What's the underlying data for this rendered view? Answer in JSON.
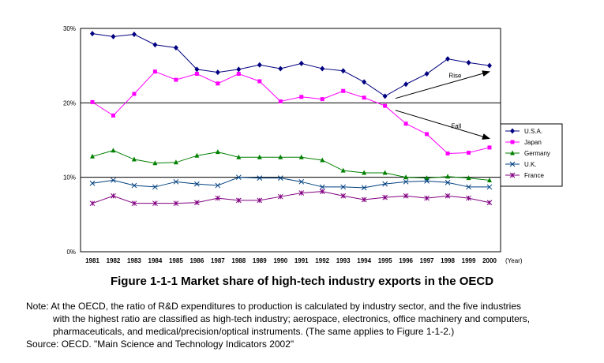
{
  "chart_data": {
    "type": "line",
    "x": [
      1981,
      1982,
      1983,
      1984,
      1985,
      1986,
      1987,
      1988,
      1989,
      1990,
      1991,
      1992,
      1993,
      1994,
      1995,
      1996,
      1997,
      1998,
      1999,
      2000
    ],
    "x_tick_labels": [
      "1981",
      "1982",
      "1983",
      "1984",
      "1985",
      "1986",
      "1987",
      "1988",
      "1989",
      "1990",
      "1991",
      "1992",
      "1993",
      "1994",
      "1995",
      "1996",
      "1997",
      "1998",
      "1999",
      "2000"
    ],
    "x_unit_label": "(Year)",
    "y_tick_labels": [
      "0%",
      "10%",
      "20%",
      "30%"
    ],
    "y_ticks": [
      0,
      10,
      20,
      30
    ],
    "ylim": [
      0,
      30
    ],
    "grid_lines": [
      10,
      20
    ],
    "legend_position": "right",
    "series": [
      {
        "name": "U.S.A.",
        "color": "#000080",
        "marker": "diamond",
        "values": [
          29.3,
          28.9,
          29.2,
          27.8,
          27.4,
          24.5,
          24.1,
          24.5,
          25.1,
          24.6,
          25.3,
          24.6,
          24.3,
          22.8,
          20.9,
          22.5,
          23.9,
          25.9,
          25.4,
          25.0
        ]
      },
      {
        "name": "Japan",
        "color": "#ff00ff",
        "marker": "square",
        "values": [
          20.1,
          18.3,
          21.2,
          24.2,
          23.1,
          23.9,
          22.6,
          23.9,
          22.9,
          20.2,
          20.8,
          20.5,
          21.6,
          20.7,
          19.6,
          17.2,
          15.8,
          13.2,
          13.3,
          14.0
        ]
      },
      {
        "name": "Germany",
        "color": "#008000",
        "marker": "triangle",
        "values": [
          12.8,
          13.6,
          12.4,
          11.9,
          12.0,
          12.9,
          13.4,
          12.7,
          12.7,
          12.7,
          12.7,
          12.3,
          10.9,
          10.6,
          10.6,
          10.0,
          9.9,
          10.1,
          9.9,
          9.6
        ]
      },
      {
        "name": "U.K.",
        "color": "#004080",
        "marker": "x",
        "values": [
          9.2,
          9.6,
          8.9,
          8.7,
          9.4,
          9.1,
          8.9,
          10.0,
          9.9,
          9.9,
          9.4,
          8.7,
          8.7,
          8.6,
          9.1,
          9.4,
          9.5,
          9.3,
          8.7,
          8.7
        ]
      },
      {
        "name": "France",
        "color": "#800080",
        "marker": "star",
        "values": [
          6.5,
          7.5,
          6.5,
          6.5,
          6.5,
          6.6,
          7.2,
          6.9,
          6.9,
          7.4,
          7.9,
          8.1,
          7.5,
          7.0,
          7.3,
          7.5,
          7.2,
          7.5,
          7.2,
          6.6
        ]
      }
    ],
    "annotations": [
      {
        "text": "Rise",
        "from": [
          1995.5,
          20.6
        ],
        "to": [
          2000,
          24.2
        ]
      },
      {
        "text": "Fall",
        "from": [
          1995.5,
          19.0
        ],
        "to": [
          2000,
          15.2
        ]
      }
    ]
  },
  "figure_title": "Figure 1-1-1  Market share of high-tech industry exports in the OECD",
  "note_lines": [
    "Note: At the OECD, the ratio of R&D expenditures to production is calculated by industry sector, and the five industries",
    "with the highest ratio are classified as high-tech industry; aerospace, electronics, office machinery and computers,",
    "pharmaceuticals, and medical/precision/optical instruments. (The same applies to Figure 1-1-2.)",
    "Source: OECD. \"Main Science and Technology Indicators 2002\""
  ]
}
